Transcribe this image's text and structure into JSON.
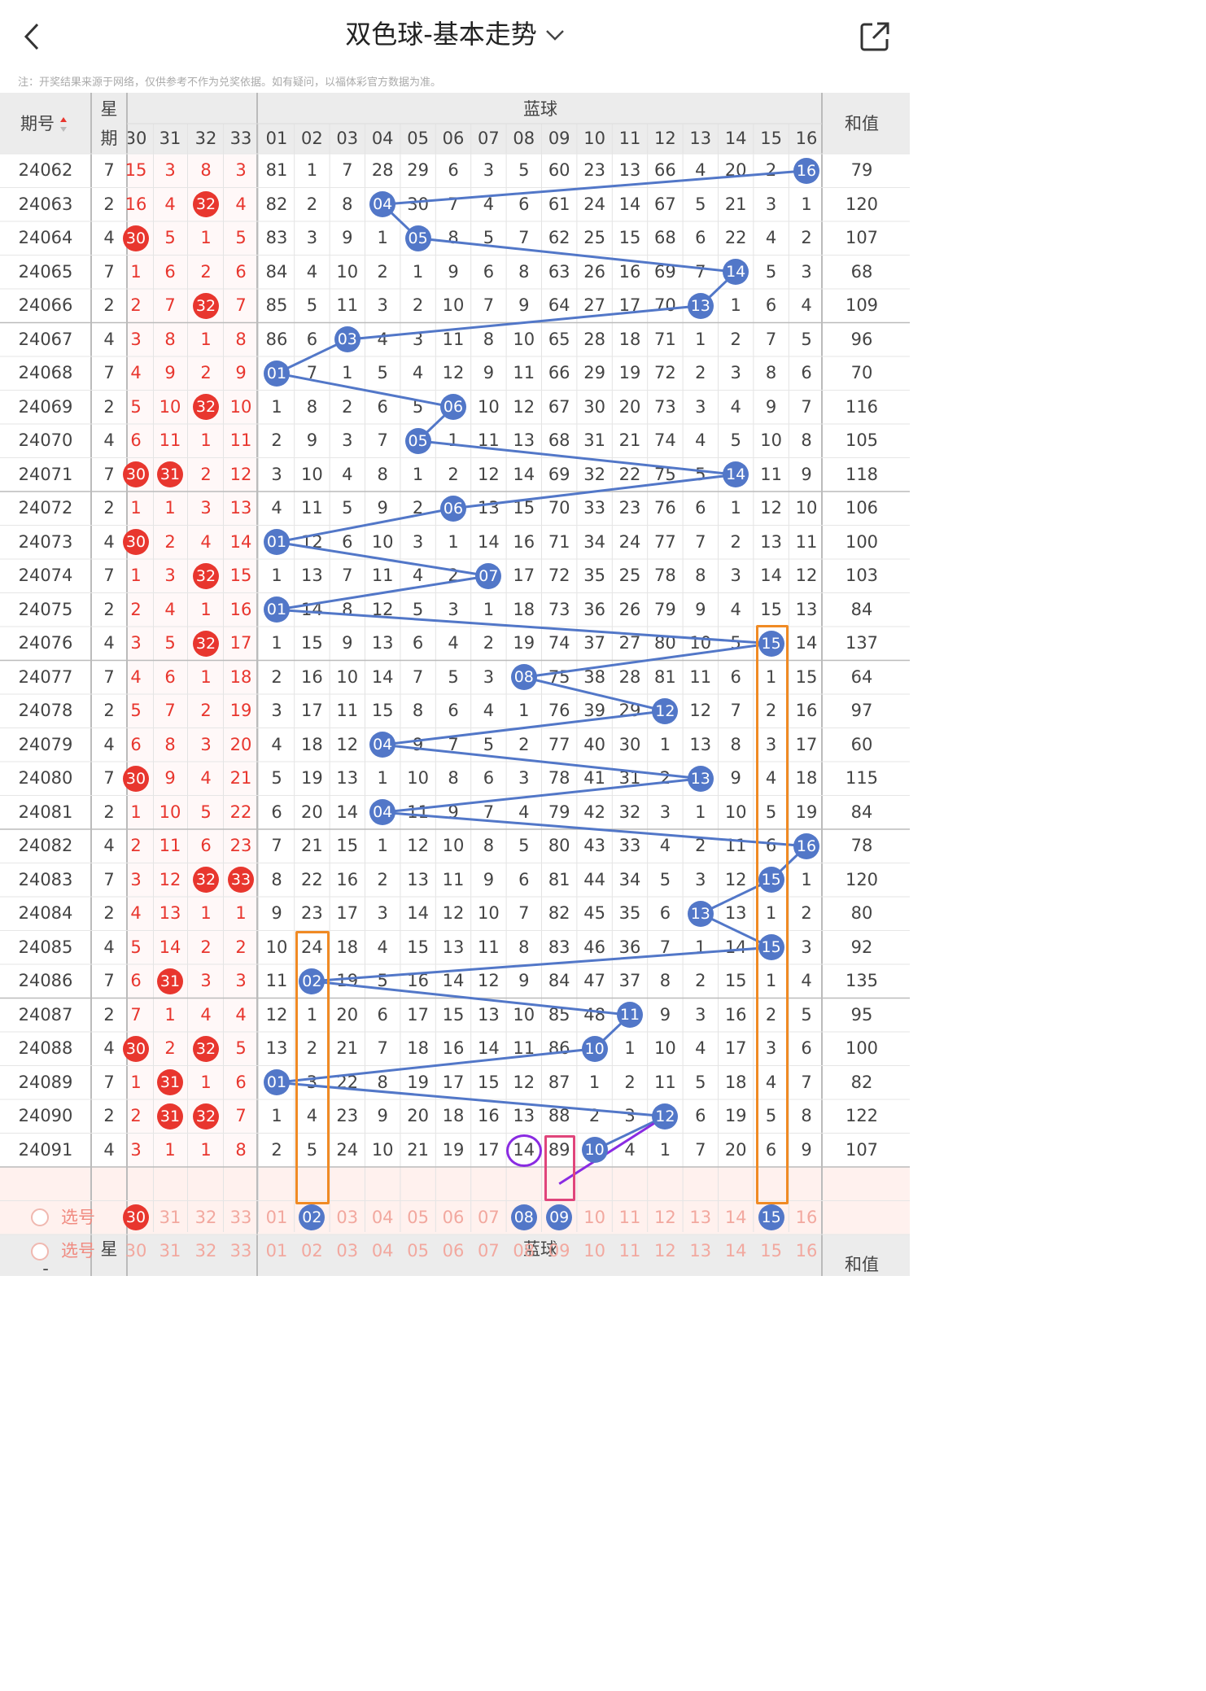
{
  "header": {
    "back_icon": "chevron-left-icon",
    "title": "双色球-基本走势",
    "dropdown_icon": "chevron-down-icon",
    "share_icon": "share-icon"
  },
  "note": "注：开奖结果来源于网络，仅供参考不作为兑奖依据。如有疑问，以福体彩官方数据为准。",
  "columns": {
    "issue": "期号",
    "weekday_top": "星",
    "weekday_bottom": "期",
    "blue_group": "蓝球",
    "sum": "和值",
    "red_tail": [
      "30",
      "31",
      "32",
      "33"
    ],
    "blue": [
      "01",
      "02",
      "03",
      "04",
      "05",
      "06",
      "07",
      "08",
      "09",
      "10",
      "11",
      "12",
      "13",
      "14",
      "15",
      "16"
    ]
  },
  "select_label": "选号",
  "select_rows": [
    {
      "label": "选号",
      "red_selected": [
        "30"
      ],
      "blue_selected": [
        "02",
        "08",
        "09",
        "15"
      ]
    },
    {
      "label": "选号",
      "red_selected": [],
      "blue_selected": []
    }
  ],
  "colors": {
    "red": "#e8362e",
    "blue_ball": "#5277c8",
    "orange_box": "#f08a24",
    "purple": "#8a2be2",
    "pink": "#e0457b"
  },
  "rows": [
    {
      "issue": "24062",
      "wd": "7",
      "red": [
        "15",
        "3",
        "8",
        "3"
      ],
      "blue": [
        81,
        1,
        7,
        28,
        29,
        6,
        3,
        5,
        60,
        23,
        13,
        66,
        4,
        20,
        2,
        16
      ],
      "hit": 16,
      "sum": "79"
    },
    {
      "issue": "24063",
      "wd": "2",
      "red": [
        "16",
        "4",
        "32",
        "4"
      ],
      "blue": [
        82,
        2,
        8,
        4,
        30,
        7,
        4,
        6,
        61,
        24,
        14,
        67,
        5,
        21,
        3,
        1
      ],
      "hit": 4,
      "sum": "120"
    },
    {
      "issue": "24064",
      "wd": "4",
      "red": [
        "30",
        "5",
        "1",
        "5"
      ],
      "blue": [
        83,
        3,
        9,
        1,
        5,
        8,
        5,
        7,
        62,
        25,
        15,
        68,
        6,
        22,
        4,
        2
      ],
      "hit": 5,
      "sum": "107"
    },
    {
      "issue": "24065",
      "wd": "7",
      "red": [
        "1",
        "6",
        "2",
        "6"
      ],
      "blue": [
        84,
        4,
        10,
        2,
        1,
        9,
        6,
        8,
        63,
        26,
        16,
        69,
        7,
        14,
        5,
        3
      ],
      "hit": 14,
      "sum": "68"
    },
    {
      "issue": "24066",
      "wd": "2",
      "red": [
        "2",
        "7",
        "32",
        "7"
      ],
      "blue": [
        85,
        5,
        11,
        3,
        2,
        10,
        7,
        9,
        64,
        27,
        17,
        70,
        13,
        1,
        6,
        4
      ],
      "hit": 13,
      "sum": "109"
    },
    {
      "issue": "24067",
      "wd": "4",
      "red": [
        "3",
        "8",
        "1",
        "8"
      ],
      "blue": [
        86,
        6,
        3,
        4,
        3,
        11,
        8,
        10,
        65,
        28,
        18,
        71,
        1,
        2,
        7,
        5
      ],
      "hit": 3,
      "sum": "96"
    },
    {
      "issue": "24068",
      "wd": "7",
      "red": [
        "4",
        "9",
        "2",
        "9"
      ],
      "blue": [
        1,
        7,
        1,
        5,
        4,
        12,
        9,
        11,
        66,
        29,
        19,
        72,
        2,
        3,
        8,
        6
      ],
      "hit": 1,
      "sum": "70"
    },
    {
      "issue": "24069",
      "wd": "2",
      "red": [
        "5",
        "10",
        "32",
        "10"
      ],
      "blue": [
        1,
        8,
        2,
        6,
        5,
        6,
        10,
        12,
        67,
        30,
        20,
        73,
        3,
        4,
        9,
        7
      ],
      "hit": 6,
      "sum": "116"
    },
    {
      "issue": "24070",
      "wd": "4",
      "red": [
        "6",
        "11",
        "1",
        "11"
      ],
      "blue": [
        2,
        9,
        3,
        7,
        5,
        1,
        11,
        13,
        68,
        31,
        21,
        74,
        4,
        5,
        10,
        8
      ],
      "hit": 5,
      "sum": "105"
    },
    {
      "issue": "24071",
      "wd": "7",
      "red": [
        "30",
        "31",
        "2",
        "12"
      ],
      "blue": [
        3,
        10,
        4,
        8,
        1,
        2,
        12,
        14,
        69,
        32,
        22,
        75,
        5,
        14,
        11,
        9
      ],
      "hit": 14,
      "sum": "118"
    },
    {
      "issue": "24072",
      "wd": "2",
      "red": [
        "1",
        "1",
        "3",
        "13"
      ],
      "blue": [
        4,
        11,
        5,
        9,
        2,
        6,
        13,
        15,
        70,
        33,
        23,
        76,
        6,
        1,
        12,
        10
      ],
      "hit": 6,
      "sum": "106"
    },
    {
      "issue": "24073",
      "wd": "4",
      "red": [
        "30",
        "2",
        "4",
        "14"
      ],
      "blue": [
        1,
        12,
        6,
        10,
        3,
        1,
        14,
        16,
        71,
        34,
        24,
        77,
        7,
        2,
        13,
        11
      ],
      "hit": 1,
      "sum": "100"
    },
    {
      "issue": "24074",
      "wd": "7",
      "red": [
        "1",
        "3",
        "32",
        "15"
      ],
      "blue": [
        1,
        13,
        7,
        11,
        4,
        2,
        7,
        17,
        72,
        35,
        25,
        78,
        8,
        3,
        14,
        12
      ],
      "hit": 7,
      "sum": "103"
    },
    {
      "issue": "24075",
      "wd": "2",
      "red": [
        "2",
        "4",
        "1",
        "16"
      ],
      "blue": [
        1,
        14,
        8,
        12,
        5,
        3,
        1,
        18,
        73,
        36,
        26,
        79,
        9,
        4,
        15,
        13
      ],
      "hit": 1,
      "sum": "84"
    },
    {
      "issue": "24076",
      "wd": "4",
      "red": [
        "3",
        "5",
        "32",
        "17"
      ],
      "blue": [
        1,
        15,
        9,
        13,
        6,
        4,
        2,
        19,
        74,
        37,
        27,
        80,
        10,
        5,
        15,
        14
      ],
      "hit": 15,
      "sum": "137"
    },
    {
      "issue": "24077",
      "wd": "7",
      "red": [
        "4",
        "6",
        "1",
        "18"
      ],
      "blue": [
        2,
        16,
        10,
        14,
        7,
        5,
        3,
        8,
        75,
        38,
        28,
        81,
        11,
        6,
        1,
        15
      ],
      "hit": 8,
      "sum": "64"
    },
    {
      "issue": "24078",
      "wd": "2",
      "red": [
        "5",
        "7",
        "2",
        "19"
      ],
      "blue": [
        3,
        17,
        11,
        15,
        8,
        6,
        4,
        1,
        76,
        39,
        29,
        12,
        12,
        7,
        2,
        16
      ],
      "hit": 12,
      "sum": "97"
    },
    {
      "issue": "24079",
      "wd": "4",
      "red": [
        "6",
        "8",
        "3",
        "20"
      ],
      "blue": [
        4,
        18,
        12,
        4,
        9,
        7,
        5,
        2,
        77,
        40,
        30,
        1,
        13,
        8,
        3,
        17
      ],
      "hit": 4,
      "sum": "60"
    },
    {
      "issue": "24080",
      "wd": "7",
      "red": [
        "30",
        "9",
        "4",
        "21"
      ],
      "blue": [
        5,
        19,
        13,
        1,
        10,
        8,
        6,
        3,
        78,
        41,
        31,
        2,
        13,
        9,
        4,
        18
      ],
      "hit": 13,
      "sum": "115"
    },
    {
      "issue": "24081",
      "wd": "2",
      "red": [
        "1",
        "10",
        "5",
        "22"
      ],
      "blue": [
        6,
        20,
        14,
        4,
        11,
        9,
        7,
        4,
        79,
        42,
        32,
        3,
        1,
        10,
        5,
        19
      ],
      "hit": 4,
      "sum": "84"
    },
    {
      "issue": "24082",
      "wd": "4",
      "red": [
        "2",
        "11",
        "6",
        "23"
      ],
      "blue": [
        7,
        21,
        15,
        1,
        12,
        10,
        8,
        5,
        80,
        43,
        33,
        4,
        2,
        11,
        6,
        16
      ],
      "hit": 16,
      "sum": "78"
    },
    {
      "issue": "24083",
      "wd": "7",
      "red": [
        "3",
        "12",
        "32",
        "33"
      ],
      "blue": [
        8,
        22,
        16,
        2,
        13,
        11,
        9,
        6,
        81,
        44,
        34,
        5,
        3,
        12,
        15,
        1
      ],
      "hit": 15,
      "sum": "120"
    },
    {
      "issue": "24084",
      "wd": "2",
      "red": [
        "4",
        "13",
        "1",
        "1"
      ],
      "blue": [
        9,
        23,
        17,
        3,
        14,
        12,
        10,
        7,
        82,
        45,
        35,
        6,
        13,
        13,
        1,
        2
      ],
      "hit": 13,
      "sum": "80"
    },
    {
      "issue": "24085",
      "wd": "4",
      "red": [
        "5",
        "14",
        "2",
        "2"
      ],
      "blue": [
        10,
        24,
        18,
        4,
        15,
        13,
        11,
        8,
        83,
        46,
        36,
        7,
        1,
        14,
        15,
        3
      ],
      "hit": 15,
      "sum": "92"
    },
    {
      "issue": "24086",
      "wd": "7",
      "red": [
        "6",
        "31",
        "3",
        "3"
      ],
      "blue": [
        11,
        2,
        19,
        5,
        16,
        14,
        12,
        9,
        84,
        47,
        37,
        8,
        2,
        15,
        1,
        4
      ],
      "hit": 2,
      "sum": "135"
    },
    {
      "issue": "24087",
      "wd": "2",
      "red": [
        "7",
        "1",
        "4",
        "4"
      ],
      "blue": [
        12,
        1,
        20,
        6,
        17,
        15,
        13,
        10,
        85,
        48,
        11,
        9,
        3,
        16,
        2,
        5
      ],
      "hit": 11,
      "sum": "95"
    },
    {
      "issue": "24088",
      "wd": "4",
      "red": [
        "30",
        "2",
        "32",
        "5"
      ],
      "blue": [
        13,
        2,
        21,
        7,
        18,
        16,
        14,
        11,
        86,
        10,
        1,
        10,
        4,
        17,
        3,
        6
      ],
      "hit": 10,
      "sum": "100"
    },
    {
      "issue": "24089",
      "wd": "7",
      "red": [
        "1",
        "31",
        "1",
        "6"
      ],
      "blue": [
        1,
        3,
        22,
        8,
        19,
        17,
        15,
        12,
        87,
        1,
        2,
        11,
        5,
        18,
        4,
        7
      ],
      "hit": 1,
      "sum": "82"
    },
    {
      "issue": "24090",
      "wd": "2",
      "red": [
        "2",
        "31",
        "32",
        "7"
      ],
      "blue": [
        1,
        4,
        23,
        9,
        20,
        18,
        16,
        13,
        88,
        2,
        3,
        12,
        6,
        19,
        5,
        8
      ],
      "hit": 12,
      "sum": "122"
    },
    {
      "issue": "24091",
      "wd": "4",
      "red": [
        "3",
        "1",
        "1",
        "8"
      ],
      "blue": [
        2,
        5,
        24,
        10,
        21,
        19,
        17,
        14,
        89,
        10,
        4,
        1,
        7,
        20,
        6,
        9
      ],
      "hit": 10,
      "sum": "107"
    }
  ]
}
